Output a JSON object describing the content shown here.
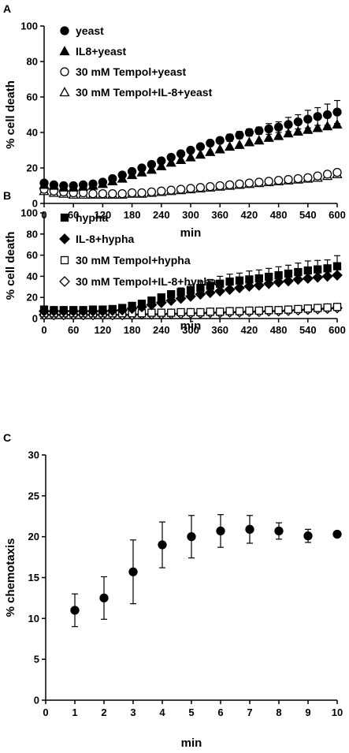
{
  "chart_data": [
    {
      "panel": "A",
      "type": "scatter",
      "ylabel": "% cell death",
      "xlabel": "min",
      "xlim": [
        0,
        600
      ],
      "ylim": [
        0,
        100
      ],
      "xticks": [
        0,
        60,
        120,
        180,
        240,
        300,
        360,
        420,
        480,
        540,
        600
      ],
      "yticks": [
        0,
        20,
        40,
        60,
        80,
        100
      ],
      "legend_position": "top-left",
      "series": [
        {
          "name": "yeast",
          "marker": "filled-circle",
          "x": [
            0,
            20,
            40,
            60,
            80,
            100,
            120,
            140,
            160,
            180,
            200,
            220,
            240,
            260,
            280,
            300,
            320,
            340,
            360,
            380,
            400,
            420,
            440,
            460,
            480,
            500,
            520,
            540,
            560,
            580,
            600
          ],
          "y": [
            11.5,
            10.5,
            10,
            10,
            10.5,
            11,
            12,
            14,
            16,
            18,
            20,
            22,
            24,
            26,
            28,
            30,
            32,
            34,
            35.5,
            37,
            38.5,
            40,
            41,
            42,
            43,
            44.5,
            46,
            47.5,
            49,
            50,
            51.5
          ],
          "err": [
            0,
            0,
            0,
            0,
            0,
            0,
            0,
            0,
            0,
            0,
            0,
            0,
            0,
            0,
            0,
            0,
            0,
            0,
            0,
            2,
            2,
            2,
            2,
            3,
            3,
            4,
            4,
            5,
            5,
            6,
            6.5
          ]
        },
        {
          "name": "IL8+yeast",
          "marker": "filled-triangle",
          "x": [
            0,
            20,
            40,
            60,
            80,
            100,
            120,
            140,
            160,
            180,
            200,
            220,
            240,
            260,
            280,
            300,
            320,
            340,
            360,
            380,
            400,
            420,
            440,
            460,
            480,
            500,
            520,
            540,
            560,
            580,
            600
          ],
          "y": [
            10.5,
            10,
            9,
            9,
            9.5,
            10,
            11,
            12.5,
            14,
            16,
            17.5,
            19,
            21,
            23,
            24.5,
            26,
            27.5,
            29,
            30.5,
            32,
            33,
            34.5,
            35.5,
            37,
            38,
            39.5,
            40.5,
            41.5,
            42.5,
            43.5,
            44.5
          ],
          "err": []
        },
        {
          "name": "30 mM Tempol+yeast",
          "marker": "open-circle",
          "x": [
            0,
            20,
            40,
            60,
            80,
            100,
            120,
            140,
            160,
            180,
            200,
            220,
            240,
            260,
            280,
            300,
            320,
            340,
            360,
            380,
            400,
            420,
            440,
            460,
            480,
            500,
            520,
            540,
            560,
            580,
            600
          ],
          "y": [
            8,
            7,
            6.5,
            6,
            6,
            5.5,
            5.5,
            5.5,
            5.5,
            6,
            6,
            6.5,
            7,
            7.5,
            8,
            8.5,
            9,
            9.5,
            10,
            10.5,
            11,
            11.5,
            12,
            12.5,
            13,
            13.5,
            14,
            14.5,
            15.5,
            16.5,
            17.5
          ],
          "err": [
            0,
            0,
            0,
            0,
            0,
            0,
            0,
            0,
            0,
            0,
            0,
            0,
            0,
            0,
            0,
            0,
            0,
            0,
            0,
            0,
            0,
            0,
            0,
            0,
            0,
            0,
            0,
            0,
            1,
            1.5,
            1.5
          ]
        },
        {
          "name": "30 mM Tempol+IL-8+yeast",
          "marker": "open-triangle",
          "x": [
            0,
            20,
            40,
            60,
            80,
            100,
            120,
            140,
            160,
            180,
            200,
            220,
            240,
            260,
            280,
            300,
            320,
            340,
            360,
            380,
            400,
            420,
            440,
            460,
            480,
            500,
            520,
            540,
            560,
            580,
            600
          ],
          "y": [
            7,
            6,
            5.5,
            5,
            5,
            5,
            5,
            5,
            5,
            5.5,
            5.5,
            6,
            6.5,
            7,
            7.5,
            8,
            8.5,
            9,
            9.5,
            10,
            10.5,
            11,
            11.5,
            12,
            12.5,
            13,
            13.5,
            14,
            14.5,
            15.5,
            16.5
          ],
          "err": []
        }
      ]
    },
    {
      "panel": "B",
      "type": "scatter",
      "ylabel": "% cell death",
      "xlabel": "min",
      "xlim": [
        0,
        600
      ],
      "ylim": [
        0,
        100
      ],
      "xticks": [
        0,
        60,
        120,
        180,
        240,
        300,
        360,
        420,
        480,
        540,
        600
      ],
      "yticks": [
        0,
        20,
        40,
        60,
        80,
        100
      ],
      "legend_position": "top-left",
      "series": [
        {
          "name": "hypha",
          "marker": "filled-square",
          "x": [
            0,
            20,
            40,
            60,
            80,
            100,
            120,
            140,
            160,
            180,
            200,
            220,
            240,
            260,
            280,
            300,
            320,
            340,
            360,
            380,
            400,
            420,
            440,
            460,
            480,
            500,
            520,
            540,
            560,
            580,
            600
          ],
          "y": [
            8.5,
            8,
            8,
            8,
            8,
            8.5,
            8.5,
            9,
            10,
            12,
            14,
            17,
            20,
            23,
            25,
            27,
            29,
            31,
            33,
            35,
            36,
            37,
            38,
            39.5,
            41,
            42.5,
            44,
            45.5,
            46.5,
            47.5,
            49.5
          ],
          "err": [
            0,
            0,
            0,
            0,
            0,
            0,
            0,
            0,
            0,
            0,
            1,
            1.5,
            2,
            3,
            4,
            5,
            6,
            6,
            7,
            7,
            7,
            8,
            8,
            8,
            8,
            8,
            8.5,
            9,
            8.5,
            8,
            10
          ]
        },
        {
          "name": "IL-8+hypha",
          "marker": "filled-diamond",
          "x": [
            0,
            20,
            40,
            60,
            80,
            100,
            120,
            140,
            160,
            180,
            200,
            220,
            240,
            260,
            280,
            300,
            320,
            340,
            360,
            380,
            400,
            420,
            440,
            460,
            480,
            500,
            520,
            540,
            560,
            580,
            600
          ],
          "y": [
            7,
            7,
            7,
            7,
            7,
            7,
            7,
            7.5,
            8,
            9.5,
            11,
            13,
            15,
            17,
            19,
            21,
            23,
            24.5,
            26,
            27.5,
            29,
            30.5,
            31.5,
            33,
            34.5,
            35.5,
            37,
            38,
            39,
            40,
            41
          ],
          "err": []
        },
        {
          "name": "30 mM Tempol+hypha",
          "marker": "open-square",
          "x": [
            0,
            20,
            40,
            60,
            80,
            100,
            120,
            140,
            160,
            180,
            200,
            220,
            240,
            260,
            280,
            300,
            320,
            340,
            360,
            380,
            400,
            420,
            440,
            460,
            480,
            500,
            520,
            540,
            560,
            580,
            600
          ],
          "y": [
            5,
            5,
            5,
            5,
            5,
            5,
            5,
            5,
            5,
            5,
            5,
            5.5,
            5.5,
            5.5,
            6,
            6,
            6,
            6.5,
            6.5,
            7,
            7,
            7.5,
            7.5,
            8,
            8,
            8.5,
            9,
            9.5,
            10,
            10.5,
            11
          ],
          "err": [
            0,
            0,
            0,
            0,
            0,
            0,
            0,
            0,
            0,
            0,
            0,
            0,
            0,
            0,
            0,
            0,
            0,
            0,
            0,
            0,
            0,
            0,
            0,
            0,
            0,
            0,
            0,
            0,
            0,
            1,
            1
          ]
        },
        {
          "name": "30 mM Tempol+IL-8+hypha",
          "marker": "open-diamond",
          "x": [
            0,
            20,
            40,
            60,
            80,
            100,
            120,
            140,
            160,
            180,
            200,
            220,
            240,
            260,
            280,
            300,
            320,
            340,
            360,
            380,
            400,
            420,
            440,
            460,
            480,
            500,
            520,
            540,
            560,
            580,
            600
          ],
          "y": [
            3.5,
            3.5,
            3.5,
            3.5,
            3.5,
            3.5,
            3.5,
            3.5,
            3.5,
            3.5,
            4,
            4,
            4,
            4.5,
            4.5,
            5,
            5,
            5.5,
            5.5,
            6,
            6,
            6.5,
            6.5,
            7,
            7,
            7.5,
            8,
            8.5,
            9,
            9.5,
            10
          ],
          "err": []
        }
      ]
    },
    {
      "panel": "C",
      "type": "scatter",
      "ylabel": "% chemotaxis",
      "xlabel": "min",
      "xlim": [
        0,
        10
      ],
      "ylim": [
        0,
        30
      ],
      "xticks": [
        0,
        1,
        2,
        3,
        4,
        5,
        6,
        7,
        8,
        9,
        10
      ],
      "yticks": [
        0,
        5,
        10,
        15,
        20,
        25,
        30
      ],
      "series": [
        {
          "name": "",
          "marker": "filled-circle",
          "x": [
            1,
            2,
            3,
            4,
            5,
            6,
            7,
            8,
            9,
            10
          ],
          "y": [
            11,
            12.5,
            15.7,
            19,
            20,
            20.7,
            20.9,
            20.7,
            20.1,
            20.3
          ],
          "err": [
            2,
            2.6,
            3.9,
            2.8,
            2.6,
            2,
            1.7,
            1,
            0.8,
            0
          ]
        }
      ]
    }
  ]
}
